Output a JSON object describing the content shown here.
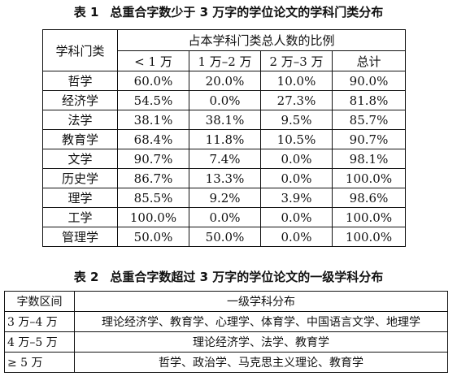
{
  "table1": {
    "caption_num": "表 1",
    "caption_title": "总重合字数少于 3 万字的学位论文的学科门类分布",
    "header_category": "学科门类",
    "header_group": "占本学科门类总人数的比例",
    "columns": [
      "< 1 万",
      "1 万–2 万",
      "2 万–3 万",
      "总计"
    ],
    "rows": [
      {
        "name": "哲学",
        "values": [
          "60.0%",
          "20.0%",
          "10.0%",
          "90.0%"
        ]
      },
      {
        "name": "经济学",
        "values": [
          "54.5%",
          "0.0%",
          "27.3%",
          "81.8%"
        ]
      },
      {
        "name": "法学",
        "values": [
          "38.1%",
          "38.1%",
          "9.5%",
          "85.7%"
        ]
      },
      {
        "name": "教育学",
        "values": [
          "68.4%",
          "11.8%",
          "10.5%",
          "90.7%"
        ]
      },
      {
        "name": "文学",
        "values": [
          "90.7%",
          "7.4%",
          "0.0%",
          "98.1%"
        ]
      },
      {
        "name": "历史学",
        "values": [
          "86.7%",
          "13.3%",
          "0.0%",
          "100.0%"
        ]
      },
      {
        "name": "理学",
        "values": [
          "85.5%",
          "9.2%",
          "3.9%",
          "98.6%"
        ]
      },
      {
        "name": "工学",
        "values": [
          "100.0%",
          "0.0%",
          "0.0%",
          "100.0%"
        ]
      },
      {
        "name": "管理学",
        "values": [
          "50.0%",
          "50.0%",
          "0.0%",
          "100.0%"
        ]
      }
    ]
  },
  "table2": {
    "caption_num": "表 2",
    "caption_title": "总重合字数超过 3 万字的学位论文的一级学科分布",
    "header_range": "字数区间",
    "header_subjects": "一级学科分布",
    "rows": [
      {
        "range": "3 万–4 万",
        "subjects": "理论经济学、教育学、心理学、体育学、中国语言文学、地理学"
      },
      {
        "range": "4 万–5 万",
        "subjects": "理论经济学、法学、教育学"
      },
      {
        "range": "≥ 5 万",
        "subjects": "哲学、政治学、马克思主义理论、教育学"
      }
    ]
  }
}
